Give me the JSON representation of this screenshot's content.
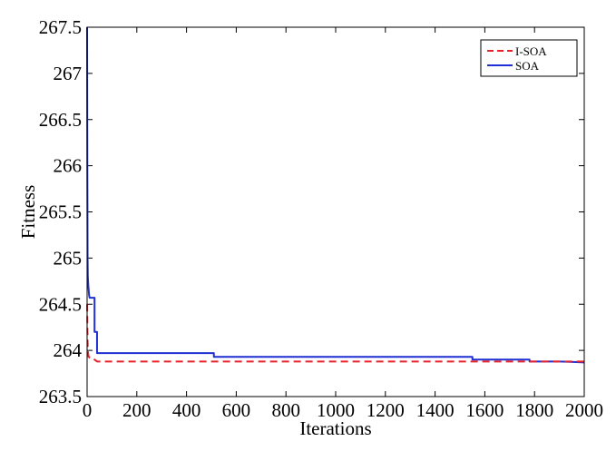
{
  "chart_data": {
    "type": "line",
    "xlabel": "Iterations",
    "ylabel": "Fitness",
    "xlim": [
      0,
      2000
    ],
    "ylim": [
      263.5,
      267.5
    ],
    "xticks": [
      "0",
      "200",
      "400",
      "600",
      "800",
      "1000",
      "1200",
      "1400",
      "1600",
      "1800",
      "2000"
    ],
    "yticks": [
      "263.5",
      "264",
      "264.5",
      "265",
      "265.5",
      "266",
      "266.5",
      "267",
      "267.5"
    ],
    "grid": false,
    "legend_position": "top-right",
    "series": [
      {
        "name": "I-SOA",
        "color": "#e8232a",
        "line_style": "dashed",
        "x": [
          0,
          1,
          2,
          3,
          4,
          5,
          6,
          8,
          10,
          12,
          15,
          20,
          25,
          30,
          40,
          50,
          100,
          200,
          500,
          1000,
          1500,
          2000
        ],
        "y": [
          264.5,
          264.3,
          264.1,
          264.0,
          263.97,
          263.95,
          263.93,
          263.93,
          263.92,
          263.92,
          263.92,
          263.92,
          263.91,
          263.9,
          263.88,
          263.88,
          263.88,
          263.88,
          263.88,
          263.88,
          263.88,
          263.88
        ]
      },
      {
        "name": "SOA",
        "color": "#1f2fd1",
        "line_style": "solid",
        "x": [
          0,
          1,
          2,
          3,
          5,
          8,
          10,
          10,
          30,
          30,
          40,
          40,
          500,
          500,
          510,
          510,
          1550,
          1550,
          1780,
          1780,
          1900,
          2000
        ],
        "y": [
          267.5,
          266.0,
          265.0,
          264.8,
          264.7,
          264.6,
          264.57,
          264.57,
          264.57,
          264.2,
          264.2,
          263.97,
          263.97,
          263.97,
          263.97,
          263.93,
          263.93,
          263.9,
          263.9,
          263.88,
          263.88,
          263.87
        ]
      }
    ]
  }
}
